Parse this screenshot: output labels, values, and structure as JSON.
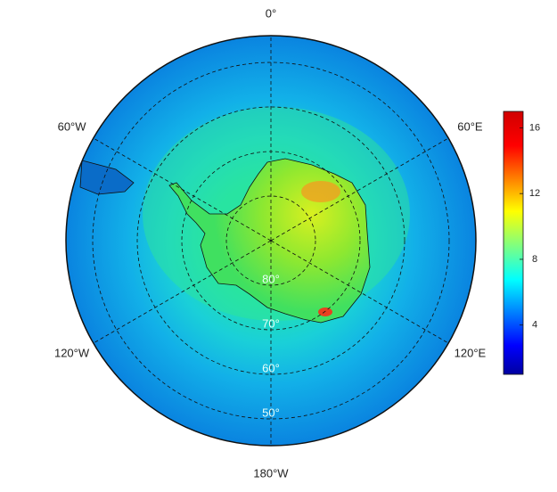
{
  "map": {
    "type": "polar-stereographic",
    "lat_lim": [
      -90,
      -44
    ],
    "meridians": [
      {
        "value": 0,
        "label": "0°"
      },
      {
        "value": 60,
        "label": "60°E"
      },
      {
        "value": 120,
        "label": "120°E"
      },
      {
        "value": 180,
        "label": "180°W"
      },
      {
        "value": -120,
        "label": "120°W"
      },
      {
        "value": -60,
        "label": "60°W"
      }
    ],
    "parallels": [
      {
        "value": -80,
        "label": "80°"
      },
      {
        "value": -70,
        "label": "70°"
      },
      {
        "value": -60,
        "label": "60°"
      },
      {
        "value": -50,
        "label": "50°"
      }
    ],
    "colorbar": {
      "colormap": "jet",
      "vlim": [
        1,
        17
      ],
      "ticks": [
        4,
        8,
        12,
        16
      ]
    }
  }
}
